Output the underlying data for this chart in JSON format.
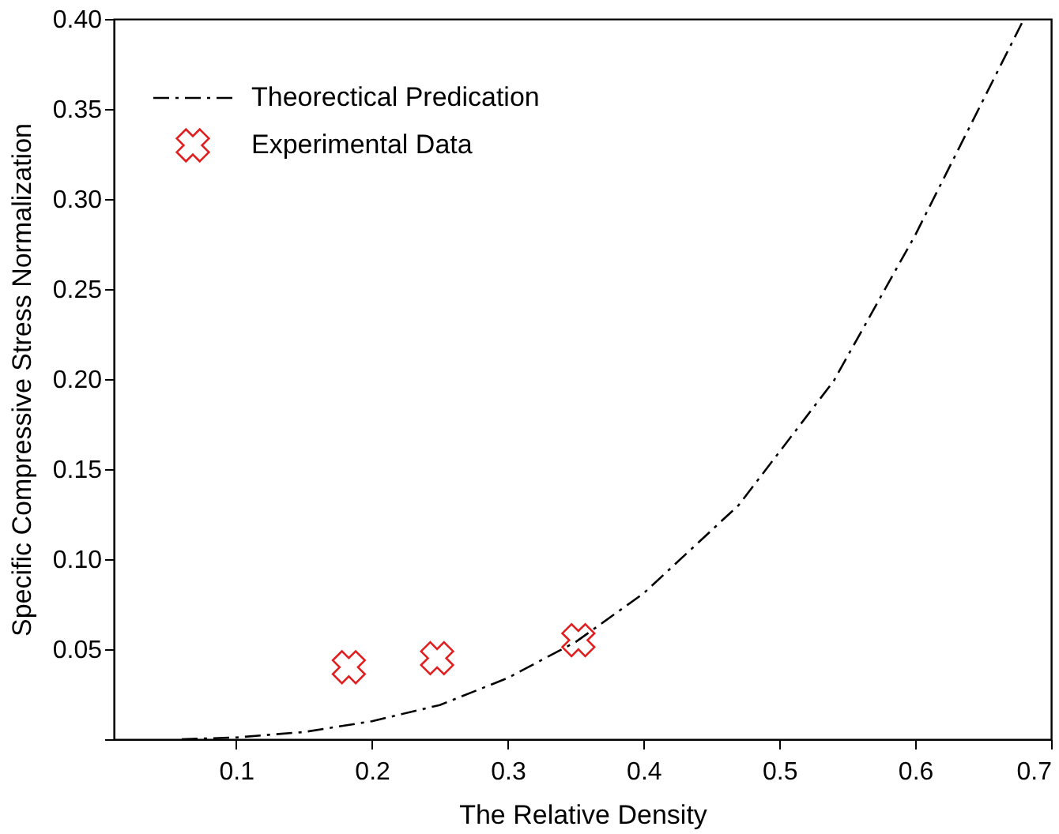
{
  "chart_data": {
    "type": "line",
    "xlabel": "The Relative Density",
    "ylabel": "Specific Compressive Stress Normalization",
    "xlim": [
      0.01,
      0.7
    ],
    "ylim": [
      0,
      0.4
    ],
    "xticks": [
      0.1,
      0.2,
      0.3,
      0.4,
      0.5,
      0.6,
      0.7
    ],
    "yticks": [
      {
        "value": 0,
        "label": null
      },
      0.05,
      {
        "value": 0.1,
        "label": "0.10"
      },
      0.15,
      {
        "value": 0.2,
        "label": "0.20"
      },
      0.25,
      {
        "value": 0.3,
        "label": "0.30"
      },
      0.35,
      {
        "value": 0.4,
        "label": "0.40"
      }
    ],
    "grid": false,
    "legend": "top left",
    "series": [
      {
        "name": "Theorectical Predication",
        "color": "#000000",
        "line_style": "dashed",
        "x": [
          0.06,
          0.1,
          0.15,
          0.2,
          0.25,
          0.3,
          0.35,
          0.4,
          0.47,
          0.54,
          0.6,
          0.64,
          0.68
        ],
        "values": [
          0,
          0.001,
          0.004,
          0.01,
          0.019,
          0.034,
          0.054,
          0.081,
          0.13,
          0.199,
          0.28,
          0.34,
          0.4
        ]
      },
      {
        "name": "Experimental Data",
        "type": "scatter",
        "color": "#e02020",
        "marker": "cross",
        "x": [
          0.183,
          0.248,
          0.352
        ],
        "values": [
          0.04,
          0.045,
          0.055
        ]
      }
    ]
  }
}
